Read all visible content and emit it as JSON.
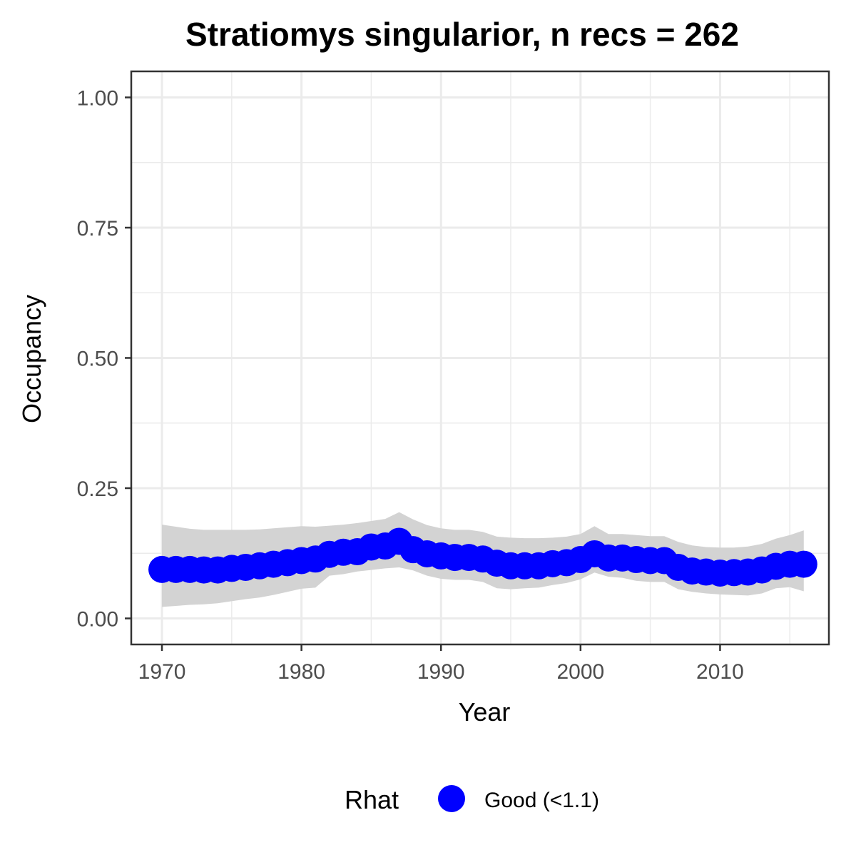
{
  "chart_data": {
    "type": "line",
    "title": "Stratiomys singularior, n recs = 262",
    "xlabel": "Year",
    "ylabel": "Occupancy",
    "xlim": [
      1967.8,
      2017.8
    ],
    "ylim": [
      -0.05,
      1.05
    ],
    "x_ticks": [
      1970,
      1980,
      1990,
      2000,
      2010
    ],
    "x_tick_labels": [
      "1970",
      "1980",
      "1990",
      "2000",
      "2010"
    ],
    "y_ticks": [
      0.0,
      0.25,
      0.5,
      0.75,
      1.0
    ],
    "y_tick_labels": [
      "0.00",
      "0.25",
      "0.50",
      "0.75",
      "1.00"
    ],
    "grid": true,
    "legend": {
      "title": "Rhat",
      "placement": "bottom",
      "entries": [
        {
          "label": "Good (<1.1)",
          "color": "#0000ff"
        }
      ]
    },
    "colors": {
      "points": "#0000ff",
      "ribbon": "#d3d3d3",
      "panel_border": "#333333",
      "grid": "#ebebeb"
    },
    "x": [
      1970,
      1971,
      1972,
      1973,
      1974,
      1975,
      1976,
      1977,
      1978,
      1979,
      1980,
      1981,
      1982,
      1983,
      1984,
      1985,
      1986,
      1987,
      1988,
      1989,
      1990,
      1991,
      1992,
      1993,
      1994,
      1995,
      1996,
      1997,
      1998,
      1999,
      2000,
      2001,
      2002,
      2003,
      2004,
      2005,
      2006,
      2007,
      2008,
      2009,
      2010,
      2011,
      2012,
      2013,
      2014,
      2015,
      2016
    ],
    "series": [
      {
        "values": [
          0.094,
          0.094,
          0.094,
          0.093,
          0.093,
          0.096,
          0.098,
          0.101,
          0.104,
          0.107,
          0.111,
          0.114,
          0.123,
          0.127,
          0.128,
          0.137,
          0.139,
          0.148,
          0.132,
          0.124,
          0.12,
          0.117,
          0.117,
          0.114,
          0.106,
          0.101,
          0.101,
          0.101,
          0.105,
          0.107,
          0.113,
          0.124,
          0.116,
          0.116,
          0.113,
          0.111,
          0.111,
          0.098,
          0.091,
          0.089,
          0.087,
          0.088,
          0.089,
          0.093,
          0.1,
          0.104,
          0.104
        ],
        "lower": [
          0.022,
          0.024,
          0.026,
          0.027,
          0.029,
          0.033,
          0.037,
          0.04,
          0.045,
          0.051,
          0.057,
          0.059,
          0.082,
          0.085,
          0.09,
          0.093,
          0.096,
          0.098,
          0.092,
          0.082,
          0.076,
          0.074,
          0.074,
          0.07,
          0.058,
          0.056,
          0.058,
          0.059,
          0.064,
          0.068,
          0.075,
          0.088,
          0.08,
          0.078,
          0.072,
          0.07,
          0.07,
          0.056,
          0.051,
          0.048,
          0.046,
          0.045,
          0.044,
          0.048,
          0.058,
          0.06,
          0.052
        ],
        "upper": [
          0.18,
          0.176,
          0.172,
          0.17,
          0.17,
          0.17,
          0.17,
          0.171,
          0.173,
          0.175,
          0.177,
          0.176,
          0.178,
          0.18,
          0.183,
          0.187,
          0.191,
          0.204,
          0.19,
          0.179,
          0.173,
          0.17,
          0.17,
          0.166,
          0.157,
          0.155,
          0.154,
          0.154,
          0.155,
          0.157,
          0.162,
          0.177,
          0.162,
          0.162,
          0.16,
          0.158,
          0.158,
          0.147,
          0.14,
          0.137,
          0.136,
          0.136,
          0.138,
          0.143,
          0.153,
          0.16,
          0.169
        ]
      }
    ]
  }
}
